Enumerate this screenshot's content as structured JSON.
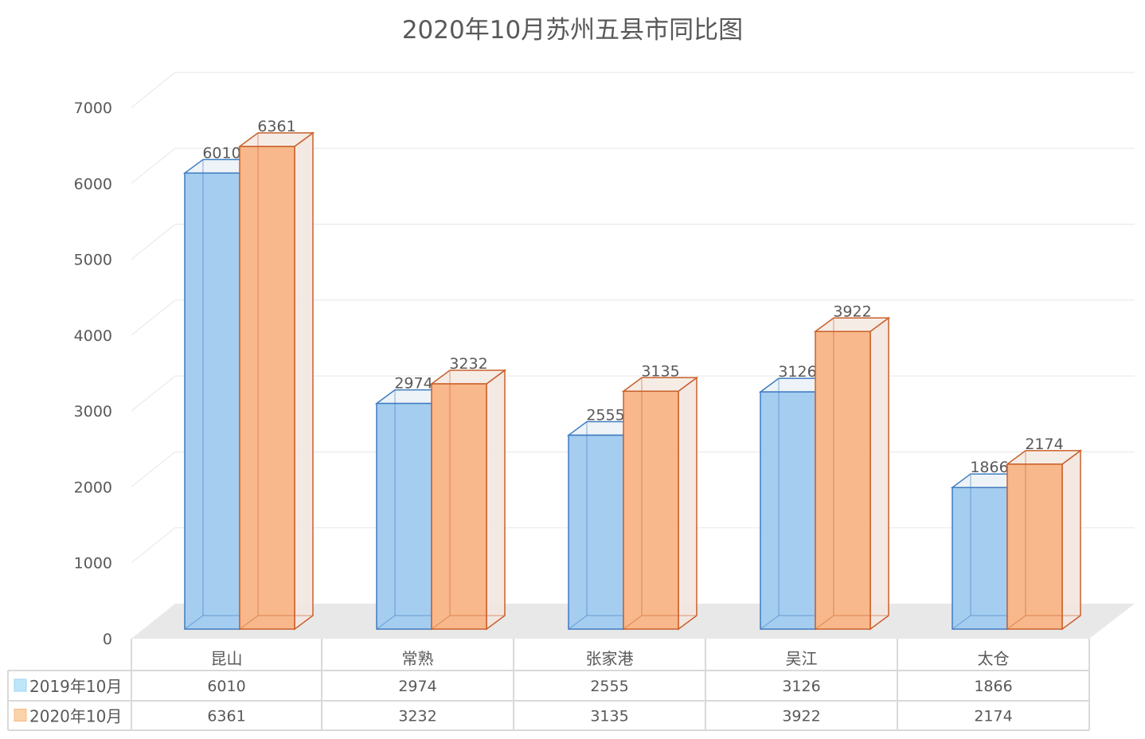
{
  "chart_data": {
    "type": "bar",
    "title": "2020年10月苏州五县市同比图",
    "categories": [
      "昆山",
      "常熟",
      "张家港",
      "吴江",
      "太仓"
    ],
    "series": [
      {
        "name": "2019年10月",
        "values": [
          6010,
          2974,
          2555,
          3126,
          1866
        ],
        "color": "#A5CDF0",
        "edge": "#3E7CC0"
      },
      {
        "name": "2020年10月",
        "values": [
          6361,
          3232,
          3135,
          3922,
          2174
        ],
        "color": "#F8B88B",
        "edge": "#C9602A"
      }
    ],
    "yticks": [
      0,
      1000,
      2000,
      3000,
      4000,
      5000,
      6000,
      7000
    ],
    "ylim": [
      0,
      7000
    ],
    "grid": true,
    "legend": "data-table-left",
    "legend_swatch_colors": [
      "#BDE6FA",
      "#FCD2A8"
    ],
    "xlabel": "",
    "ylabel": ""
  }
}
